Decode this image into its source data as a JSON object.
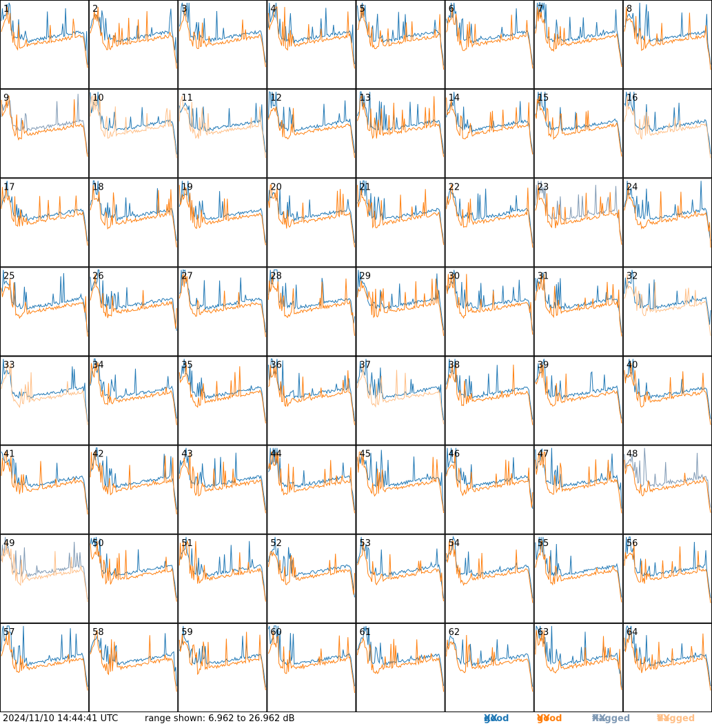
{
  "footer": {
    "timestamp": "2024/11/10 14:44:41 UTC",
    "range": "range shown: 6.962 to 26.962 dB"
  },
  "legend": [
    {
      "label": "good",
      "pol": "XX",
      "color": "#1f77b4"
    },
    {
      "label": "good",
      "pol": "YY",
      "color": "#ff7f0e"
    },
    {
      "label": "flagged",
      "pol": "XX",
      "color": "#7f99b4"
    },
    {
      "label": "flagged",
      "pol": "YY",
      "color": "#ffbf87"
    }
  ],
  "chart_data": {
    "type": "line",
    "grid": {
      "rows": 8,
      "cols": 8
    },
    "ylim_db": [
      6.962,
      26.962
    ],
    "panels": [
      {
        "n": "1",
        "xx": "good",
        "yy": "good"
      },
      {
        "n": "2",
        "xx": "good",
        "yy": "good"
      },
      {
        "n": "3",
        "xx": "good",
        "yy": "good"
      },
      {
        "n": "4",
        "xx": "good",
        "yy": "good"
      },
      {
        "n": "5",
        "xx": "good",
        "yy": "good"
      },
      {
        "n": "6",
        "xx": "good",
        "yy": "good"
      },
      {
        "n": "7",
        "xx": "good",
        "yy": "good"
      },
      {
        "n": "8",
        "xx": "good",
        "yy": "good"
      },
      {
        "n": "9",
        "xx": "flagged",
        "yy": "good"
      },
      {
        "n": "10",
        "xx": "good",
        "yy": "flagged"
      },
      {
        "n": "11",
        "xx": "good",
        "yy": "flagged"
      },
      {
        "n": "12",
        "xx": "good",
        "yy": "good"
      },
      {
        "n": "13",
        "xx": "good",
        "yy": "good"
      },
      {
        "n": "14",
        "xx": "good",
        "yy": "good"
      },
      {
        "n": "15",
        "xx": "good",
        "yy": "good"
      },
      {
        "n": "16",
        "xx": "good",
        "yy": "flagged"
      },
      {
        "n": "17",
        "xx": "good",
        "yy": "good"
      },
      {
        "n": "18",
        "xx": "good",
        "yy": "good"
      },
      {
        "n": "19",
        "xx": "good",
        "yy": "good"
      },
      {
        "n": "20",
        "xx": "good",
        "yy": "good"
      },
      {
        "n": "21",
        "xx": "good",
        "yy": "good"
      },
      {
        "n": "22",
        "xx": "good",
        "yy": "good"
      },
      {
        "n": "23",
        "xx": "flagged",
        "yy": "good"
      },
      {
        "n": "24",
        "xx": "good",
        "yy": "good"
      },
      {
        "n": "25",
        "xx": "good",
        "yy": "good"
      },
      {
        "n": "26",
        "xx": "good",
        "yy": "good"
      },
      {
        "n": "27",
        "xx": "good",
        "yy": "good"
      },
      {
        "n": "28",
        "xx": "good",
        "yy": "good"
      },
      {
        "n": "29",
        "xx": "good",
        "yy": "good"
      },
      {
        "n": "30",
        "xx": "good",
        "yy": "good"
      },
      {
        "n": "31",
        "xx": "good",
        "yy": "good"
      },
      {
        "n": "32",
        "xx": "good",
        "yy": "flagged"
      },
      {
        "n": "33",
        "xx": "good",
        "yy": "flagged"
      },
      {
        "n": "34",
        "xx": "good",
        "yy": "good"
      },
      {
        "n": "35",
        "xx": "good",
        "yy": "good"
      },
      {
        "n": "36",
        "xx": "good",
        "yy": "good"
      },
      {
        "n": "37",
        "xx": "good",
        "yy": "flagged"
      },
      {
        "n": "38",
        "xx": "good",
        "yy": "good"
      },
      {
        "n": "39",
        "xx": "good",
        "yy": "good"
      },
      {
        "n": "40",
        "xx": "good",
        "yy": "good"
      },
      {
        "n": "41",
        "xx": "good",
        "yy": "good"
      },
      {
        "n": "42",
        "xx": "good",
        "yy": "good"
      },
      {
        "n": "43",
        "xx": "good",
        "yy": "good"
      },
      {
        "n": "44",
        "xx": "good",
        "yy": "good"
      },
      {
        "n": "45",
        "xx": "good",
        "yy": "good"
      },
      {
        "n": "46",
        "xx": "good",
        "yy": "good"
      },
      {
        "n": "47",
        "xx": "good",
        "yy": "good"
      },
      {
        "n": "48",
        "xx": "flagged",
        "yy": "good"
      },
      {
        "n": "49",
        "xx": "flagged",
        "yy": "flagged"
      },
      {
        "n": "50",
        "xx": "good",
        "yy": "good"
      },
      {
        "n": "51",
        "xx": "good",
        "yy": "good"
      },
      {
        "n": "52",
        "xx": "good",
        "yy": "good"
      },
      {
        "n": "53",
        "xx": "good",
        "yy": "good"
      },
      {
        "n": "54",
        "xx": "good",
        "yy": "good"
      },
      {
        "n": "55",
        "xx": "good",
        "yy": "good"
      },
      {
        "n": "56",
        "xx": "good",
        "yy": "good"
      },
      {
        "n": "57",
        "xx": "good",
        "yy": "good"
      },
      {
        "n": "58",
        "xx": "good",
        "yy": "good"
      },
      {
        "n": "59",
        "xx": "good",
        "yy": "good"
      },
      {
        "n": "60",
        "xx": "good",
        "yy": "good"
      },
      {
        "n": "61",
        "xx": "good",
        "yy": "good"
      },
      {
        "n": "62",
        "xx": "good",
        "yy": "good"
      },
      {
        "n": "63",
        "xx": "good",
        "yy": "good"
      },
      {
        "n": "64",
        "xx": "good",
        "yy": "good"
      }
    ]
  }
}
